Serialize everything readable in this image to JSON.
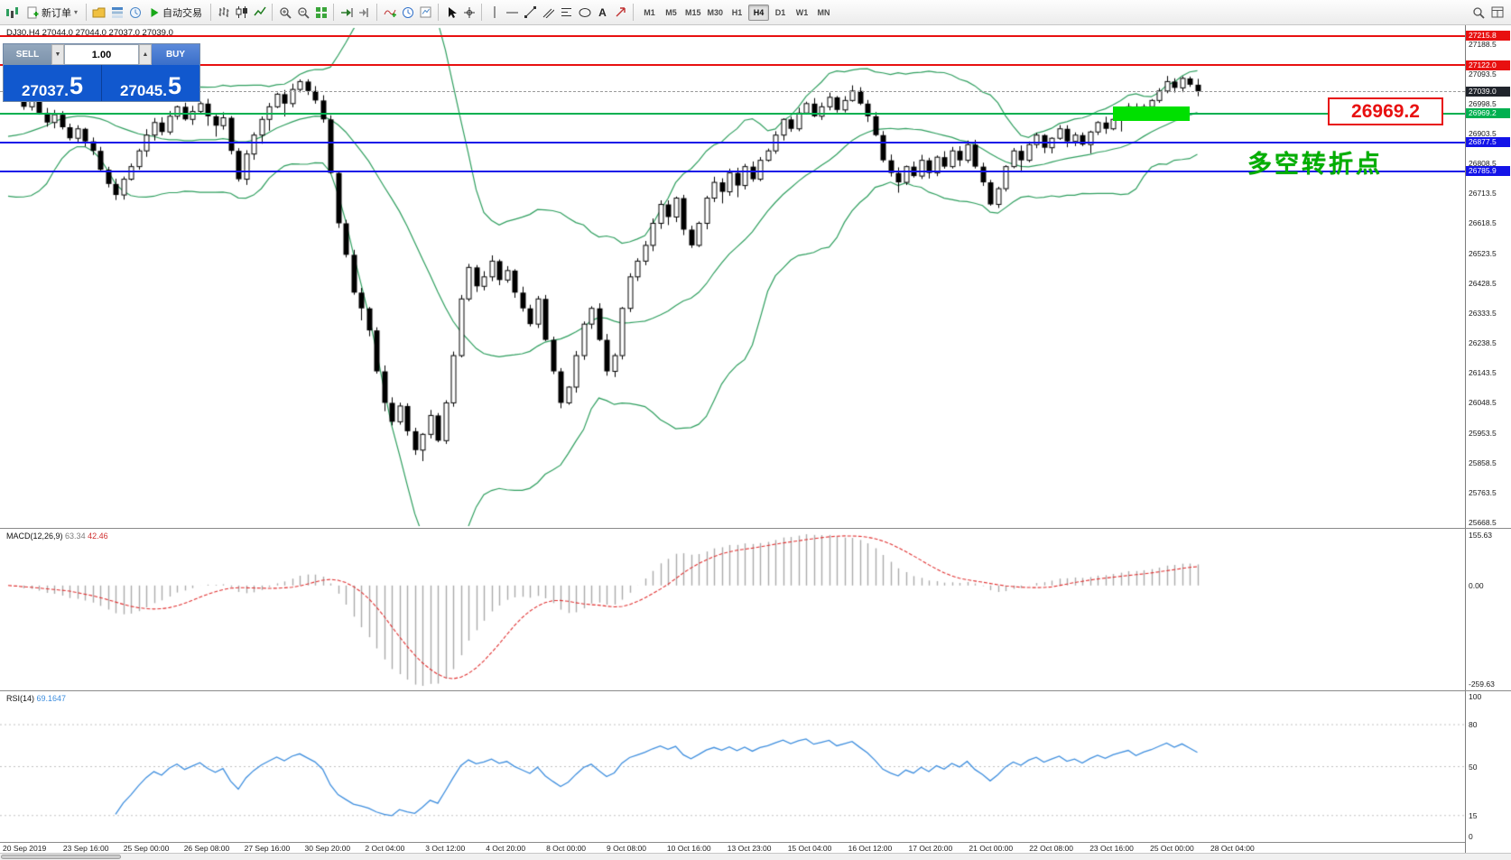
{
  "toolbar": {
    "new_order_label": "新订单",
    "autotrading_label": "自动交易",
    "text_tool_label": "A",
    "timeframes": [
      "M1",
      "M5",
      "M15",
      "M30",
      "H1",
      "H4",
      "D1",
      "W1",
      "MN"
    ],
    "active_timeframe": "H4"
  },
  "trade_panel": {
    "sell_label": "SELL",
    "buy_label": "BUY",
    "volume": "1.00",
    "sell_price": "27037.",
    "sell_price_big": "5",
    "buy_price": "27045.",
    "buy_price_big": "5"
  },
  "chart": {
    "title_line": "DJ30,H4 27044.0 27044.0 27037.0 27039.0",
    "symbol": "DJ30",
    "timeframe": "H4"
  },
  "annotations": {
    "price_tag": "26969.2",
    "pivot_text": "多空转折点",
    "pivot_text_color": "#00AE00",
    "highlight_color": "#00E000"
  },
  "levels": [
    {
      "name": "resistance-upper",
      "price": 27215.8,
      "color": "#E81010",
      "badge_bg": "#E81010",
      "style": "solid"
    },
    {
      "name": "resistance-lower",
      "price": 27122.0,
      "color": "#E81010",
      "badge_bg": "#E81010",
      "style": "solid"
    },
    {
      "name": "current-price",
      "price": 27039.0,
      "color": "#9a9a9a",
      "badge_bg": "#20242b",
      "style": "dashed"
    },
    {
      "name": "pivot-green",
      "price": 26969.2,
      "color": "#00B050",
      "badge_bg": "#00B050",
      "style": "solid"
    },
    {
      "name": "support-upper",
      "price": 26877.5,
      "color": "#1414E8",
      "badge_bg": "#1414E8",
      "style": "solid"
    },
    {
      "name": "support-lower",
      "price": 26785.9,
      "color": "#1414E8",
      "badge_bg": "#1414E8",
      "style": "solid"
    }
  ],
  "price_scale": [
    27188.5,
    27093.5,
    26998.5,
    26903.5,
    26808.5,
    26713.5,
    26618.5,
    26523.5,
    26428.5,
    26333.5,
    26238.5,
    26143.5,
    26048.5,
    25953.5,
    25858.5,
    25763.5,
    25668.5
  ],
  "macd_panel": {
    "label": "MACD(12,26,9)",
    "value_main": "63.34",
    "value_signal": "42.46",
    "scale_top": "155.63",
    "scale_zero": "0.00",
    "scale_bottom": "-259.63"
  },
  "rsi_panel": {
    "label": "RSI(14)",
    "value": "69.1647",
    "scale": [
      100,
      80,
      50,
      15,
      0
    ],
    "levels": [
      80,
      50,
      15
    ]
  },
  "time_axis": [
    "20 Sep 2019",
    "23 Sep 16:00",
    "25 Sep 00:00",
    "26 Sep 08:00",
    "27 Sep 16:00",
    "30 Sep 20:00",
    "2 Oct 04:00",
    "3 Oct 12:00",
    "4 Oct 20:00",
    "8 Oct 00:00",
    "9 Oct 08:00",
    "10 Oct 16:00",
    "13 Oct 23:00",
    "15 Oct 04:00",
    "16 Oct 12:00",
    "17 Oct 20:00",
    "21 Oct 00:00",
    "22 Oct 08:00",
    "23 Oct 16:00",
    "25 Oct 00:00",
    "28 Oct 04:00"
  ],
  "chart_data": {
    "type": "candlestick",
    "symbol": "DJ30",
    "timeframe": "H4",
    "ohlc_current": [
      27044.0,
      27044.0,
      27037.0,
      27039.0
    ],
    "price_axis_range": [
      25668.5,
      27215.8
    ],
    "indicators": [
      "Bollinger Bands(20,2)",
      "MACD(12,26,9)",
      "RSI(14)"
    ],
    "closes": [
      27055,
      27020,
      26990,
      27015,
      26970,
      26940,
      26965,
      26925,
      26890,
      26920,
      26880,
      26850,
      26790,
      26745,
      26710,
      26760,
      26800,
      26850,
      26900,
      26940,
      26910,
      26960,
      26990,
      26950,
      26975,
      27000,
      26960,
      26930,
      26955,
      26850,
      26760,
      26840,
      26900,
      26950,
      26990,
      27030,
      27000,
      27045,
      27070,
      27040,
      27010,
      26950,
      26780,
      26620,
      26520,
      26400,
      26350,
      26280,
      26150,
      26050,
      25990,
      26040,
      25960,
      25900,
      25950,
      26010,
      25930,
      26050,
      26200,
      26380,
      26480,
      26420,
      26450,
      26500,
      26440,
      26470,
      26400,
      26350,
      26300,
      26380,
      26250,
      26150,
      26050,
      26100,
      26200,
      26300,
      26350,
      26250,
      26150,
      26200,
      26350,
      26450,
      26500,
      26550,
      26620,
      26680,
      26640,
      26700,
      26600,
      26550,
      26620,
      26700,
      26750,
      26720,
      26780,
      26740,
      26800,
      26760,
      26820,
      26850,
      26900,
      26950,
      26920,
      26970,
      27000,
      26960,
      26990,
      27020,
      26980,
      27010,
      27040,
      27000,
      26960,
      26900,
      26820,
      26780,
      26750,
      26800,
      26770,
      26820,
      26780,
      26830,
      26800,
      26850,
      26820,
      26870,
      26800,
      26750,
      26680,
      26730,
      26800,
      26850,
      26820,
      26870,
      26900,
      26860,
      26890,
      26920,
      26880,
      26900,
      26870,
      26910,
      26940,
      26920,
      26950,
      26970,
      26990,
      26960,
      26990,
      27010,
      27040,
      27070,
      27050,
      27080,
      27060,
      27039
    ]
  }
}
